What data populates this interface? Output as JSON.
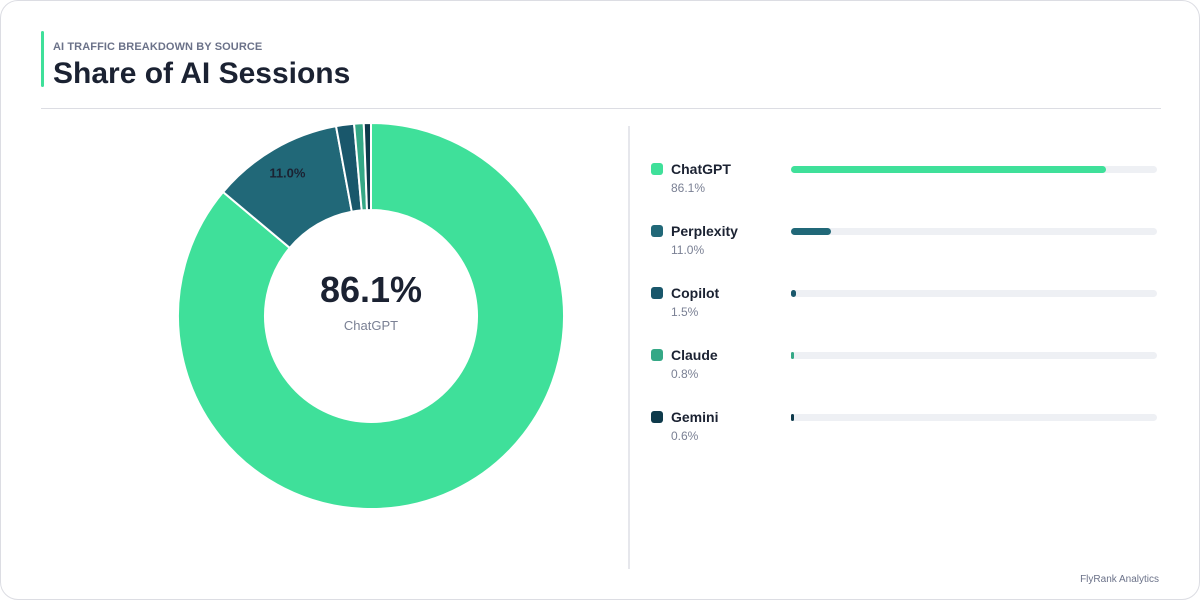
{
  "header": {
    "eyebrow": "AI TRAFFIC BREAKDOWN BY SOURCE",
    "title": "Share of AI Sessions"
  },
  "center": {
    "value": "86.1%",
    "label": "ChatGPT"
  },
  "footer": "FlyRank Analytics",
  "chart_data": {
    "type": "pie",
    "donut": true,
    "categories": [
      "ChatGPT",
      "Perplexity",
      "Copilot",
      "Claude",
      "Gemini"
    ],
    "values": [
      86.1,
      11.0,
      1.5,
      0.8,
      0.6
    ],
    "labels": [
      "86.1%",
      "11.0%",
      "1.5%",
      "0.8%",
      "0.6%"
    ],
    "colors": [
      "#3fe09a",
      "#216878",
      "#19576b",
      "#35a886",
      "#0e3a4b"
    ],
    "slice_label": "11.0%"
  }
}
